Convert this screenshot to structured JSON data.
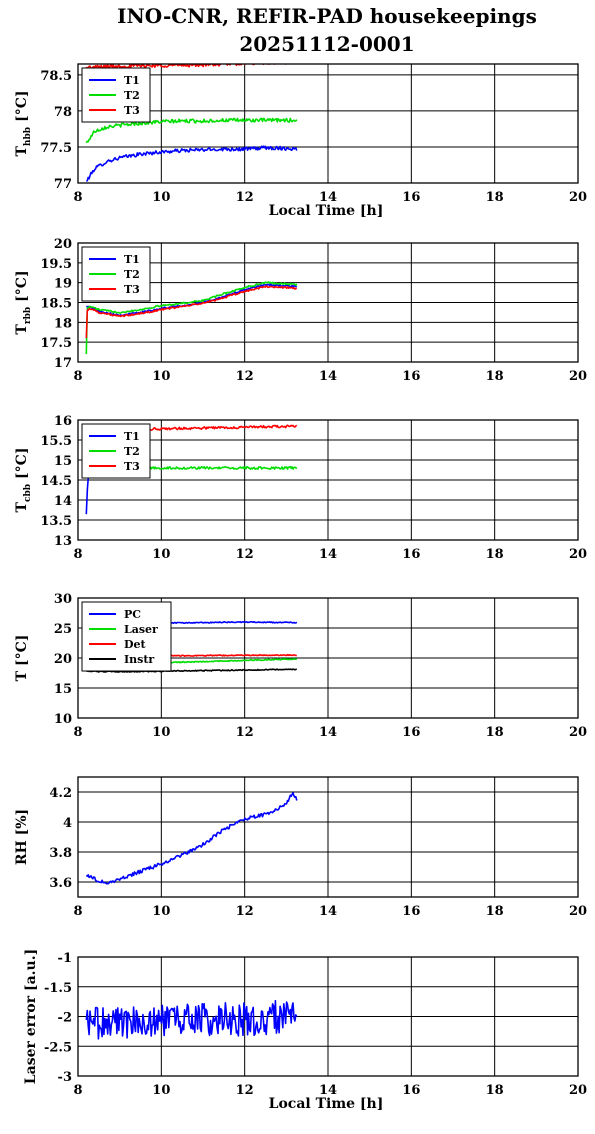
{
  "figure": {
    "title_line1": "INO-CNR, REFIR-PAD housekeepings",
    "title_line2": "20251112-0001"
  },
  "chart_data": [
    {
      "type": "line",
      "ylabel_main": "T",
      "ylabel_sub": "hbb",
      "ylabel_unit": "[°C]",
      "xlabel": "Local Time [h]",
      "xlim": [
        8,
        20
      ],
      "ylim": [
        77,
        78.65
      ],
      "xticks": [
        "8",
        "10",
        "12",
        "14",
        "16",
        "18",
        "20"
      ],
      "yticks": [
        "77",
        "77.5",
        "78",
        "78.5"
      ],
      "ytick_values": [
        77,
        77.5,
        78,
        78.5
      ],
      "grid": true,
      "legend": "top-left",
      "noise": 0.025,
      "series": [
        {
          "name": "T1",
          "color": "#0000ff",
          "x": [
            8.2,
            8.4,
            8.7,
            9.0,
            9.5,
            10.0,
            10.5,
            11.0,
            11.5,
            12.0,
            12.5,
            13.0,
            13.25
          ],
          "y": [
            77.02,
            77.2,
            77.3,
            77.35,
            77.4,
            77.43,
            77.45,
            77.46,
            77.47,
            77.47,
            77.49,
            77.48,
            77.47
          ]
        },
        {
          "name": "T2",
          "color": "#00dd00",
          "x": [
            8.2,
            8.4,
            8.7,
            9.0,
            9.5,
            10.0,
            10.5,
            11.0,
            11.5,
            12.0,
            12.5,
            13.0,
            13.25
          ],
          "y": [
            77.55,
            77.72,
            77.78,
            77.8,
            77.83,
            77.85,
            77.86,
            77.86,
            77.87,
            77.87,
            77.87,
            77.87,
            77.87
          ]
        },
        {
          "name": "T3",
          "color": "#ff0000",
          "x": [
            8.2,
            8.5,
            9.0,
            10.0,
            11.0,
            12.0,
            12.5,
            13.0,
            13.25
          ],
          "y": [
            78.6,
            78.61,
            78.62,
            78.63,
            78.64,
            78.66,
            78.67,
            78.67,
            78.68
          ]
        }
      ]
    },
    {
      "type": "line",
      "ylabel_main": "T",
      "ylabel_sub": "rbb",
      "ylabel_unit": "[°C]",
      "xlabel": "",
      "xlim": [
        8,
        20
      ],
      "ylim": [
        17,
        20
      ],
      "xticks": [
        "8",
        "10",
        "12",
        "14",
        "16",
        "18",
        "20"
      ],
      "yticks": [
        "17",
        "17.5",
        "18",
        "18.5",
        "19",
        "19.5",
        "20"
      ],
      "ytick_values": [
        17,
        17.5,
        18,
        18.5,
        19,
        19.5,
        20
      ],
      "grid": true,
      "legend": "top-left",
      "noise": 0.02,
      "series": [
        {
          "name": "T1",
          "color": "#0000ff",
          "x": [
            8.2,
            8.5,
            9.0,
            9.5,
            10.0,
            10.5,
            11.0,
            11.5,
            12.0,
            12.5,
            13.0,
            13.25
          ],
          "y": [
            18.42,
            18.28,
            18.18,
            18.25,
            18.35,
            18.42,
            18.5,
            18.65,
            18.82,
            18.95,
            18.92,
            18.9
          ]
        },
        {
          "name": "T2",
          "color": "#00dd00",
          "x": [
            8.2,
            8.22,
            8.3,
            8.5,
            9.0,
            9.5,
            10.0,
            10.5,
            11.0,
            11.5,
            12.0,
            12.5,
            13.0,
            13.25
          ],
          "y": [
            17.22,
            18.35,
            18.4,
            18.32,
            18.25,
            18.32,
            18.42,
            18.48,
            18.55,
            18.72,
            18.88,
            19.0,
            18.97,
            18.95
          ]
        },
        {
          "name": "T3",
          "color": "#ff0000",
          "x": [
            8.2,
            8.22,
            8.3,
            8.5,
            9.0,
            9.5,
            10.0,
            10.5,
            11.0,
            11.5,
            12.0,
            12.5,
            13.0,
            13.25
          ],
          "y": [
            17.62,
            18.3,
            18.35,
            18.25,
            18.15,
            18.22,
            18.32,
            18.4,
            18.48,
            18.62,
            18.78,
            18.9,
            18.88,
            18.85
          ]
        }
      ]
    },
    {
      "type": "line",
      "ylabel_main": "T",
      "ylabel_sub": "cbb",
      "ylabel_unit": "[°C]",
      "xlabel": "",
      "xlim": [
        8,
        20
      ],
      "ylim": [
        13,
        16
      ],
      "xticks": [
        "8",
        "10",
        "12",
        "14",
        "16",
        "18",
        "20"
      ],
      "yticks": [
        "13",
        "13.5",
        "14",
        "14.5",
        "15",
        "15.5",
        "16"
      ],
      "ytick_values": [
        13,
        13.5,
        14,
        14.5,
        15,
        15.5,
        16
      ],
      "grid": true,
      "legend": "top-left",
      "noise": 0.03,
      "series": [
        {
          "name": "T1",
          "color": "#0000ff",
          "x": [
            8.2,
            8.22,
            8.25
          ],
          "y": [
            13.65,
            14.2,
            14.6
          ]
        },
        {
          "name": "T2",
          "color": "#00dd00",
          "x": [
            8.3,
            9.0,
            10.0,
            11.0,
            12.0,
            13.0,
            13.25
          ],
          "y": [
            14.8,
            14.8,
            14.8,
            14.8,
            14.8,
            14.8,
            14.8
          ]
        },
        {
          "name": "T3",
          "color": "#ff0000",
          "x": [
            8.3,
            9.0,
            10.0,
            11.0,
            12.0,
            13.0,
            13.25
          ],
          "y": [
            15.75,
            15.76,
            15.78,
            15.8,
            15.82,
            15.84,
            15.85
          ]
        }
      ]
    },
    {
      "type": "line",
      "ylabel_main": "T [°C]",
      "ylabel_sub": "",
      "ylabel_unit": "",
      "xlabel": "",
      "xlim": [
        8,
        20
      ],
      "ylim": [
        10,
        30
      ],
      "xticks": [
        "8",
        "10",
        "12",
        "14",
        "16",
        "18",
        "20"
      ],
      "yticks": [
        "10",
        "15",
        "20",
        "25",
        "30"
      ],
      "ytick_values": [
        10,
        15,
        20,
        25,
        30
      ],
      "grid": true,
      "legend": "top-left",
      "noise": 0.08,
      "series": [
        {
          "name": "PC",
          "color": "#0000ff",
          "x": [
            8.2,
            9.0,
            10.0,
            11.0,
            12.0,
            13.0,
            13.25
          ],
          "y": [
            25.6,
            25.7,
            25.8,
            25.9,
            26.0,
            25.9,
            25.9
          ]
        },
        {
          "name": "Laser",
          "color": "#00dd00",
          "x": [
            8.2,
            9.0,
            10.0,
            11.0,
            12.0,
            13.0,
            13.25
          ],
          "y": [
            19.0,
            19.1,
            19.2,
            19.4,
            19.6,
            19.8,
            19.8
          ]
        },
        {
          "name": "Det",
          "color": "#ff0000",
          "x": [
            8.2,
            9.0,
            10.0,
            11.0,
            12.0,
            13.0,
            13.25
          ],
          "y": [
            20.3,
            20.3,
            20.35,
            20.4,
            20.45,
            20.5,
            20.5
          ]
        },
        {
          "name": "Instr",
          "color": "#000000",
          "x": [
            8.2,
            9.0,
            10.0,
            11.0,
            12.0,
            13.0,
            13.25
          ],
          "y": [
            17.8,
            17.7,
            17.8,
            17.9,
            18.0,
            18.1,
            18.1
          ]
        }
      ]
    },
    {
      "type": "line",
      "ylabel_main": "RH [%]",
      "ylabel_sub": "",
      "ylabel_unit": "",
      "xlabel": "",
      "xlim": [
        8,
        20
      ],
      "ylim": [
        3.5,
        4.3
      ],
      "xticks": [
        "8",
        "10",
        "12",
        "14",
        "16",
        "18",
        "20"
      ],
      "yticks": [
        "3.6",
        "3.8",
        "4",
        "4.2"
      ],
      "ytick_values": [
        3.6,
        3.8,
        4.0,
        4.2
      ],
      "grid": true,
      "legend": "none",
      "noise": 0.012,
      "series": [
        {
          "name": "",
          "color": "#0000ff",
          "x": [
            8.2,
            8.4,
            8.7,
            9.0,
            9.5,
            10.0,
            10.5,
            11.0,
            11.5,
            12.0,
            12.5,
            13.0,
            13.15,
            13.25
          ],
          "y": [
            3.65,
            3.62,
            3.59,
            3.62,
            3.67,
            3.72,
            3.78,
            3.85,
            3.95,
            4.02,
            4.05,
            4.12,
            4.2,
            4.15
          ]
        }
      ]
    },
    {
      "type": "line",
      "ylabel_main": "Laser error [a.u.]",
      "ylabel_sub": "",
      "ylabel_unit": "",
      "xlabel": "Local Time [h]",
      "xlim": [
        8,
        20
      ],
      "ylim": [
        -3,
        -1
      ],
      "xticks": [
        "8",
        "10",
        "12",
        "14",
        "16",
        "18",
        "20"
      ],
      "yticks": [
        "-3",
        "-2.5",
        "-2",
        "-1.5",
        "-1"
      ],
      "ytick_values": [
        -3,
        -2.5,
        -2,
        -1.5,
        -1
      ],
      "grid": true,
      "legend": "none",
      "noise": 0.28,
      "series": [
        {
          "name": "",
          "color": "#0000ff",
          "x": [
            8.2,
            9.0,
            10.0,
            11.0,
            12.0,
            13.0,
            13.25
          ],
          "y": [
            -2.1,
            -2.1,
            -2.05,
            -2.05,
            -2.05,
            -2.0,
            -2.0
          ]
        }
      ]
    }
  ]
}
